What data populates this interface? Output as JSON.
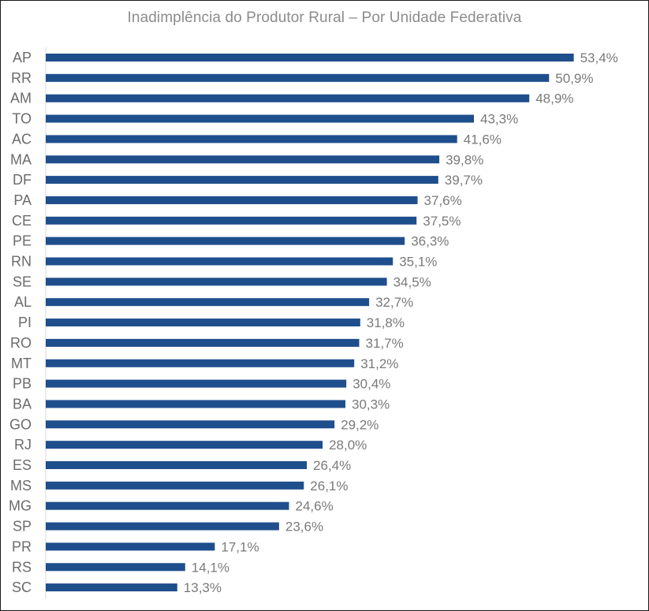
{
  "chart_data": {
    "type": "bar",
    "orientation": "horizontal",
    "title": "Inadimplência do Produtor Rural – Por Unidade Federativa",
    "xlabel": "",
    "ylabel": "",
    "xlim": [
      0,
      55
    ],
    "grid": false,
    "legend": "none",
    "bar_color": "#1F4E8C",
    "categories": [
      "AP",
      "RR",
      "AM",
      "TO",
      "AC",
      "MA",
      "DF",
      "PA",
      "CE",
      "PE",
      "RN",
      "SE",
      "AL",
      "PI",
      "RO",
      "MT",
      "PB",
      "BA",
      "GO",
      "RJ",
      "ES",
      "MS",
      "MG",
      "SP",
      "PR",
      "RS",
      "SC"
    ],
    "values": [
      53.4,
      50.9,
      48.9,
      43.3,
      41.6,
      39.8,
      39.7,
      37.6,
      37.5,
      36.3,
      35.1,
      34.5,
      32.7,
      31.8,
      31.7,
      31.2,
      30.4,
      30.3,
      29.2,
      28.0,
      26.4,
      26.1,
      24.6,
      23.6,
      17.1,
      14.1,
      13.3
    ],
    "value_labels": [
      "53,4%",
      "50,9%",
      "48,9%",
      "43,3%",
      "41,6%",
      "39,8%",
      "39,7%",
      "37,6%",
      "37,5%",
      "36,3%",
      "35,1%",
      "34,5%",
      "32,7%",
      "31,8%",
      "31,7%",
      "31,2%",
      "30,4%",
      "30,3%",
      "29,2%",
      "28,0%",
      "26,4%",
      "26,1%",
      "24,6%",
      "23,6%",
      "17,1%",
      "14,1%",
      "13,3%"
    ]
  }
}
